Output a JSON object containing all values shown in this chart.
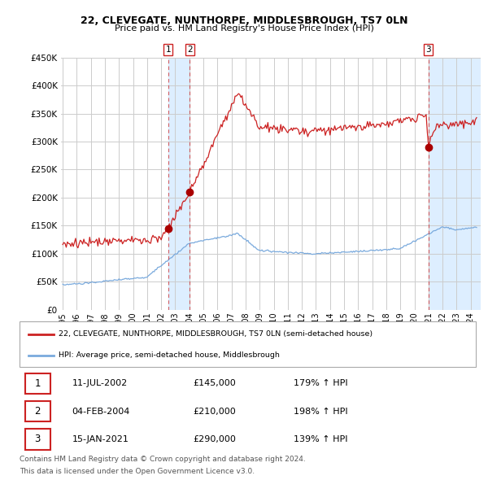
{
  "title1": "22, CLEVEGATE, NUNTHORPE, MIDDLESBROUGH, TS7 0LN",
  "title2": "Price paid vs. HM Land Registry's House Price Index (HPI)",
  "ylim": [
    0,
    450000
  ],
  "yticks": [
    0,
    50000,
    100000,
    150000,
    200000,
    250000,
    300000,
    350000,
    400000,
    450000
  ],
  "ytick_labels": [
    "£0",
    "£50K",
    "£100K",
    "£150K",
    "£200K",
    "£250K",
    "£300K",
    "£350K",
    "£400K",
    "£450K"
  ],
  "sale_t": [
    2002.54,
    2004.08,
    2021.04
  ],
  "sale_prices": [
    145000,
    210000,
    290000
  ],
  "sale_labels": [
    "1",
    "2",
    "3"
  ],
  "sale_info": [
    {
      "label": "1",
      "date": "11-JUL-2002",
      "price": "£145,000",
      "pct": "179% ↑ HPI"
    },
    {
      "label": "2",
      "date": "04-FEB-2004",
      "price": "£210,000",
      "pct": "198% ↑ HPI"
    },
    {
      "label": "3",
      "date": "15-JAN-2021",
      "price": "£290,000",
      "pct": "139% ↑ HPI"
    }
  ],
  "legend_line1": "22, CLEVEGATE, NUNTHORPE, MIDDLESBROUGH, TS7 0LN (semi-detached house)",
  "legend_line2": "HPI: Average price, semi-detached house, Middlesbrough",
  "footer1": "Contains HM Land Registry data © Crown copyright and database right 2024.",
  "footer2": "This data is licensed under the Open Government Licence v3.0.",
  "hpi_color": "#7aaadd",
  "sale_line_color": "#cc2222",
  "sale_dot_color": "#aa0000",
  "vshade_color": "#ddeeff",
  "background_color": "#ffffff",
  "grid_color": "#cccccc",
  "xmin": 1994.92,
  "xmax": 2024.75
}
